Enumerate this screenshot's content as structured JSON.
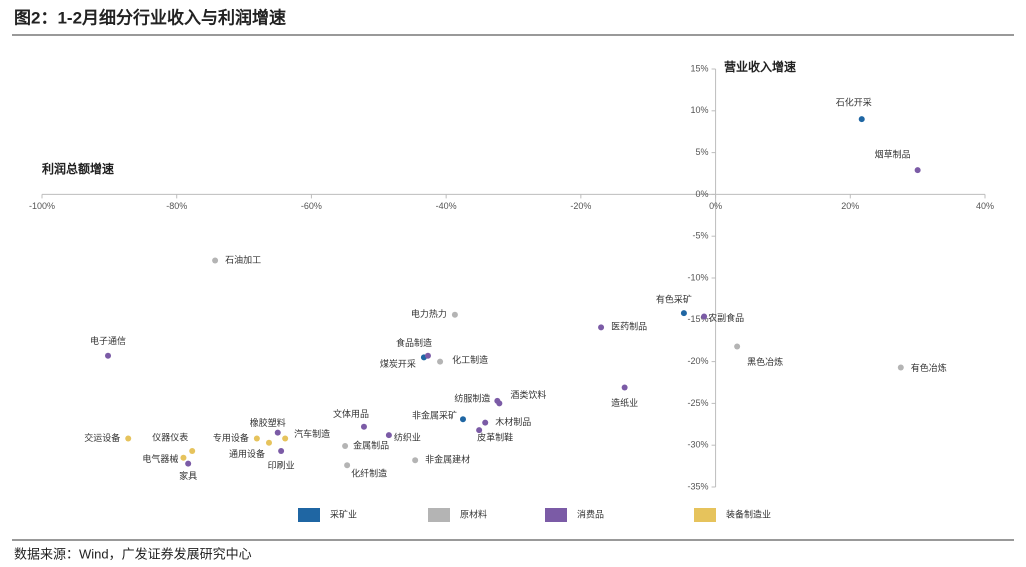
{
  "title": "图2：1-2月细分行业收入与利润增速",
  "source": "数据来源：Wind，广发证券发展研究中心",
  "chart_data": {
    "type": "scatter",
    "x_label": "利润总额增速",
    "y_label": "营业收入增速",
    "xlim": [
      -100,
      40
    ],
    "ylim": [
      -35,
      15
    ],
    "xticks": [
      {
        "value": -100,
        "label": "-100%"
      },
      {
        "value": -80,
        "label": "-80%"
      },
      {
        "value": -60,
        "label": "-60%"
      },
      {
        "value": -40,
        "label": "-40%"
      },
      {
        "value": -20,
        "label": "-20%"
      },
      {
        "value": 0,
        "label": "0%"
      },
      {
        "value": 20,
        "label": "20%"
      },
      {
        "value": 40,
        "label": "40%"
      }
    ],
    "yticks": [
      {
        "value": 15,
        "label": "15%"
      },
      {
        "value": 10,
        "label": "10%"
      },
      {
        "value": 5,
        "label": "5%"
      },
      {
        "value": 0,
        "label": "0%"
      },
      {
        "value": -5,
        "label": "-5%"
      },
      {
        "value": -10,
        "label": "-10%"
      },
      {
        "value": -15,
        "label": "-15%"
      },
      {
        "value": -20,
        "label": "-20%"
      },
      {
        "value": -25,
        "label": "-25%"
      },
      {
        "value": -30,
        "label": "-30%"
      },
      {
        "value": -35,
        "label": "-35%"
      }
    ],
    "series": [
      {
        "name": "采矿业",
        "color": "#1f66a3",
        "labels": [
          "石化开采",
          "有色采矿",
          "煤炭开采",
          "非金属采矿"
        ],
        "x": [
          21.7,
          -4.7,
          -43.3,
          -37.5
        ],
        "values": [
          9.0,
          -14.2,
          -19.5,
          -26.9
        ]
      },
      {
        "name": "原材料",
        "color": "#b4b4b4",
        "labels": [
          "石油加工",
          "电力热力",
          "化工制造",
          "黑色冶炼",
          "有色冶炼",
          "金属制品",
          "化纤制造",
          "非金属建材"
        ],
        "x": [
          -74.3,
          -38.7,
          -40.9,
          3.2,
          27.5,
          -55.0,
          -54.7,
          -44.6
        ],
        "values": [
          -7.9,
          -14.4,
          -20.0,
          -18.2,
          -20.7,
          -30.1,
          -32.4,
          -31.8
        ]
      },
      {
        "name": "消费品",
        "color": "#7b5ba6",
        "labels": [
          "烟草制品",
          "农副食品",
          "医药制品",
          "造纸业",
          "电子通信",
          "食品制造",
          "纺服制造",
          "酒类饮料",
          "木材制品",
          "皮革制鞋",
          "文体用品",
          "纺织业",
          "橡胶塑料",
          "印刷业",
          "家具"
        ],
        "x": [
          30.0,
          -1.7,
          -17.0,
          -13.5,
          -90.2,
          -42.7,
          -32.4,
          -32.1,
          -34.2,
          -35.1,
          -52.2,
          -48.5,
          -65.0,
          -64.5,
          -78.3
        ],
        "values": [
          2.9,
          -14.6,
          -15.9,
          -23.1,
          -19.3,
          -19.3,
          -24.7,
          -25.0,
          -27.3,
          -28.2,
          -27.8,
          -28.8,
          -28.5,
          -30.7,
          -32.2
        ]
      },
      {
        "name": "装备制造业",
        "color": "#e6c35c",
        "labels": [
          "交运设备",
          "仪器仪表",
          "电气器械",
          "专用设备",
          "通用设备",
          "汽车制造"
        ],
        "x": [
          -87.2,
          -77.7,
          -79.0,
          -68.1,
          -66.3,
          -63.9
        ],
        "values": [
          -29.2,
          -30.7,
          -31.5,
          -29.2,
          -29.7,
          -29.2
        ]
      }
    ]
  }
}
